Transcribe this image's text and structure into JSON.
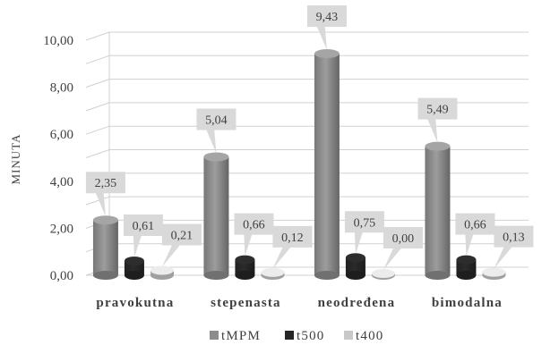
{
  "chart_data": {
    "type": "bar",
    "three_d": true,
    "categories": [
      "pravokutna",
      "stepenasta",
      "neodređena",
      "bimodalna"
    ],
    "series": [
      {
        "name": "tMPM",
        "values": [
          2.35,
          5.04,
          9.43,
          5.49
        ],
        "labels": [
          "2,35",
          "5,04",
          "9,43",
          "5,49"
        ],
        "color": "#8c8c8c"
      },
      {
        "name": "t500",
        "values": [
          0.61,
          0.66,
          0.75,
          0.66
        ],
        "labels": [
          "0,61",
          "0,66",
          "0,75",
          "0,66"
        ],
        "color": "#262626"
      },
      {
        "name": "t400",
        "values": [
          0.21,
          0.12,
          0.0,
          0.13
        ],
        "labels": [
          "0,21",
          "0,12",
          "0,00",
          "0,13"
        ],
        "color": "#c8c8c8"
      }
    ],
    "ylabel": "MINUTA",
    "ylim": [
      0,
      10
    ],
    "yticks": [
      "0,00",
      "2,00",
      "4,00",
      "6,00",
      "8,00",
      "10,00"
    ],
    "ytick_values": [
      0,
      2,
      4,
      6,
      8,
      10
    ],
    "grid": true,
    "legend_position": "bottom",
    "label_bg_color": "#d9d9d9",
    "grid_color": "#d0d0d0"
  }
}
